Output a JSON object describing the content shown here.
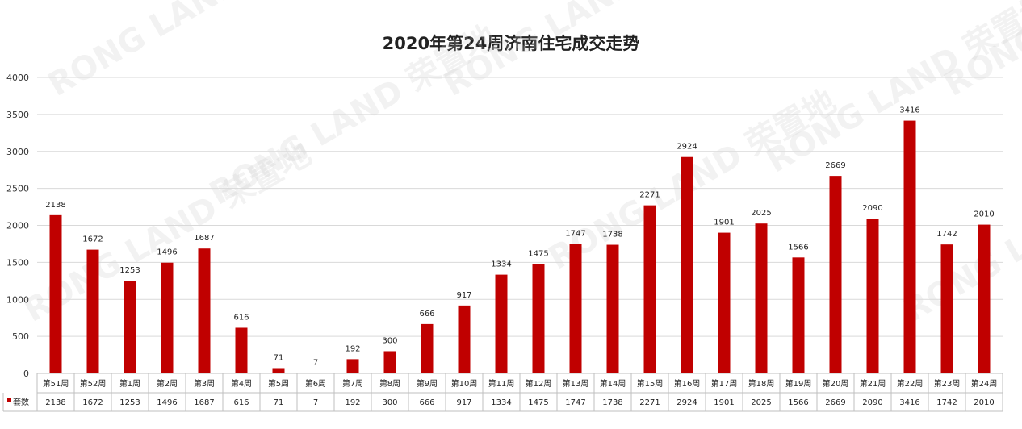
{
  "chart_data": {
    "type": "bar",
    "title": "2020年第24周济南住宅成交走势",
    "categories": [
      "第51周",
      "第52周",
      "第1周",
      "第2周",
      "第3周",
      "第4周",
      "第5周",
      "第6周",
      "第7周",
      "第8周",
      "第9周",
      "第10周",
      "第11周",
      "第12周",
      "第13周",
      "第14周",
      "第15周",
      "第16周",
      "第17周",
      "第18周",
      "第19周",
      "第20周",
      "第21周",
      "第22周",
      "第23周",
      "第24周"
    ],
    "series": [
      {
        "name": "套数",
        "values": [
          2138,
          1672,
          1253,
          1496,
          1687,
          616,
          71,
          7,
          192,
          300,
          666,
          917,
          1334,
          1475,
          1747,
          1738,
          2271,
          2924,
          1901,
          2025,
          1566,
          2669,
          2090,
          3416,
          1742,
          2010
        ]
      }
    ],
    "ylim": [
      0,
      4000
    ],
    "yticks": [
      0,
      500,
      1000,
      1500,
      2000,
      2500,
      3000,
      3500,
      4000
    ],
    "grid": true,
    "legend": "data-table",
    "bar_color": "#c00000",
    "watermark": "RONG LAND 荣置地"
  }
}
